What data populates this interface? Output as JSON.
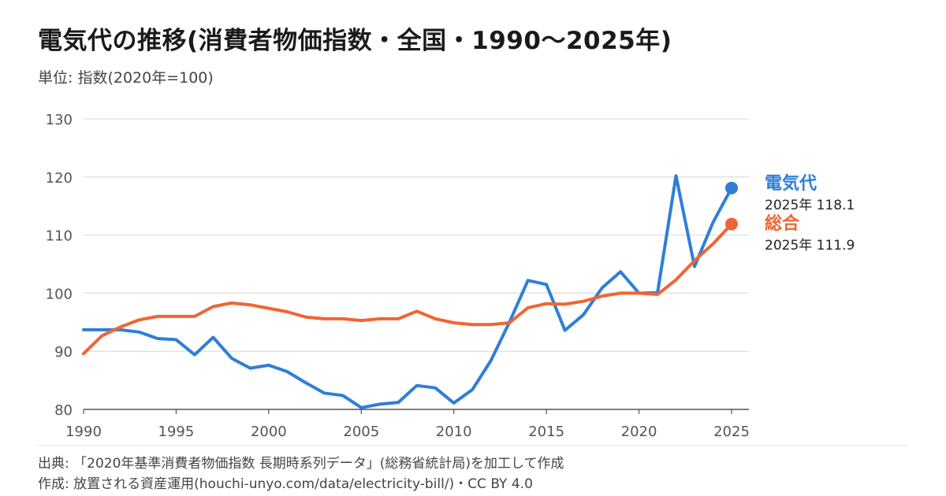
{
  "title": "電気代の推移(消費者物価指数・全国・1990〜2025年)",
  "subtitle": "単位: 指数(2020年=100)",
  "footer": {
    "source": "出典: 「2020年基準消費者物価指数 長期時系列データ」(総務省統計局)を加工して作成",
    "credit": "作成: 放置される資産運用(houchi-unyo.com/data/electricity-bill/)・CC BY 4.0"
  },
  "colors": {
    "electricity": "#2f7ed8",
    "overall": "#f06533",
    "grid": "#e3e3e3",
    "axis": "#555555"
  },
  "chart_data": {
    "type": "line",
    "title": "電気代の推移(消費者物価指数・全国・1990〜2025年)",
    "ylabel": "指数(2020年=100)",
    "xlim": [
      1990,
      2025
    ],
    "ylim": [
      80,
      130
    ],
    "yticks": [
      80,
      90,
      100,
      110,
      120,
      130
    ],
    "xticks": [
      1990,
      1995,
      2000,
      2005,
      2010,
      2015,
      2020,
      2025
    ],
    "grid": true,
    "legend": "right-end labels",
    "x": [
      1990,
      1991,
      1992,
      1993,
      1994,
      1995,
      1996,
      1997,
      1998,
      1999,
      2000,
      2001,
      2002,
      2003,
      2004,
      2005,
      2006,
      2007,
      2008,
      2009,
      2010,
      2011,
      2012,
      2013,
      2014,
      2015,
      2016,
      2017,
      2018,
      2019,
      2020,
      2021,
      2022,
      2023,
      2024,
      2025
    ],
    "series": [
      {
        "name": "電気代",
        "key": "electricity",
        "values": [
          93.7,
          93.7,
          93.7,
          93.3,
          92.2,
          92.0,
          89.4,
          92.4,
          88.8,
          87.1,
          87.6,
          86.5,
          84.6,
          82.8,
          82.4,
          80.3,
          80.9,
          81.2,
          84.1,
          83.7,
          81.1,
          83.4,
          88.4,
          95.0,
          102.2,
          101.5,
          93.6,
          96.3,
          100.9,
          103.7,
          100.0,
          100.1,
          120.2,
          104.6,
          112.2,
          118.1
        ],
        "end_label": "2025年 118.1"
      },
      {
        "name": "総合",
        "key": "overall",
        "values": [
          89.6,
          92.7,
          94.2,
          95.4,
          96.0,
          96.0,
          96.0,
          97.7,
          98.3,
          98.0,
          97.4,
          96.8,
          95.9,
          95.6,
          95.6,
          95.3,
          95.6,
          95.6,
          96.9,
          95.6,
          94.9,
          94.6,
          94.6,
          94.9,
          97.5,
          98.2,
          98.1,
          98.6,
          99.5,
          100.0,
          100.0,
          99.8,
          102.3,
          105.6,
          108.5,
          111.9
        ],
        "end_label": "2025年 111.9"
      }
    ]
  }
}
